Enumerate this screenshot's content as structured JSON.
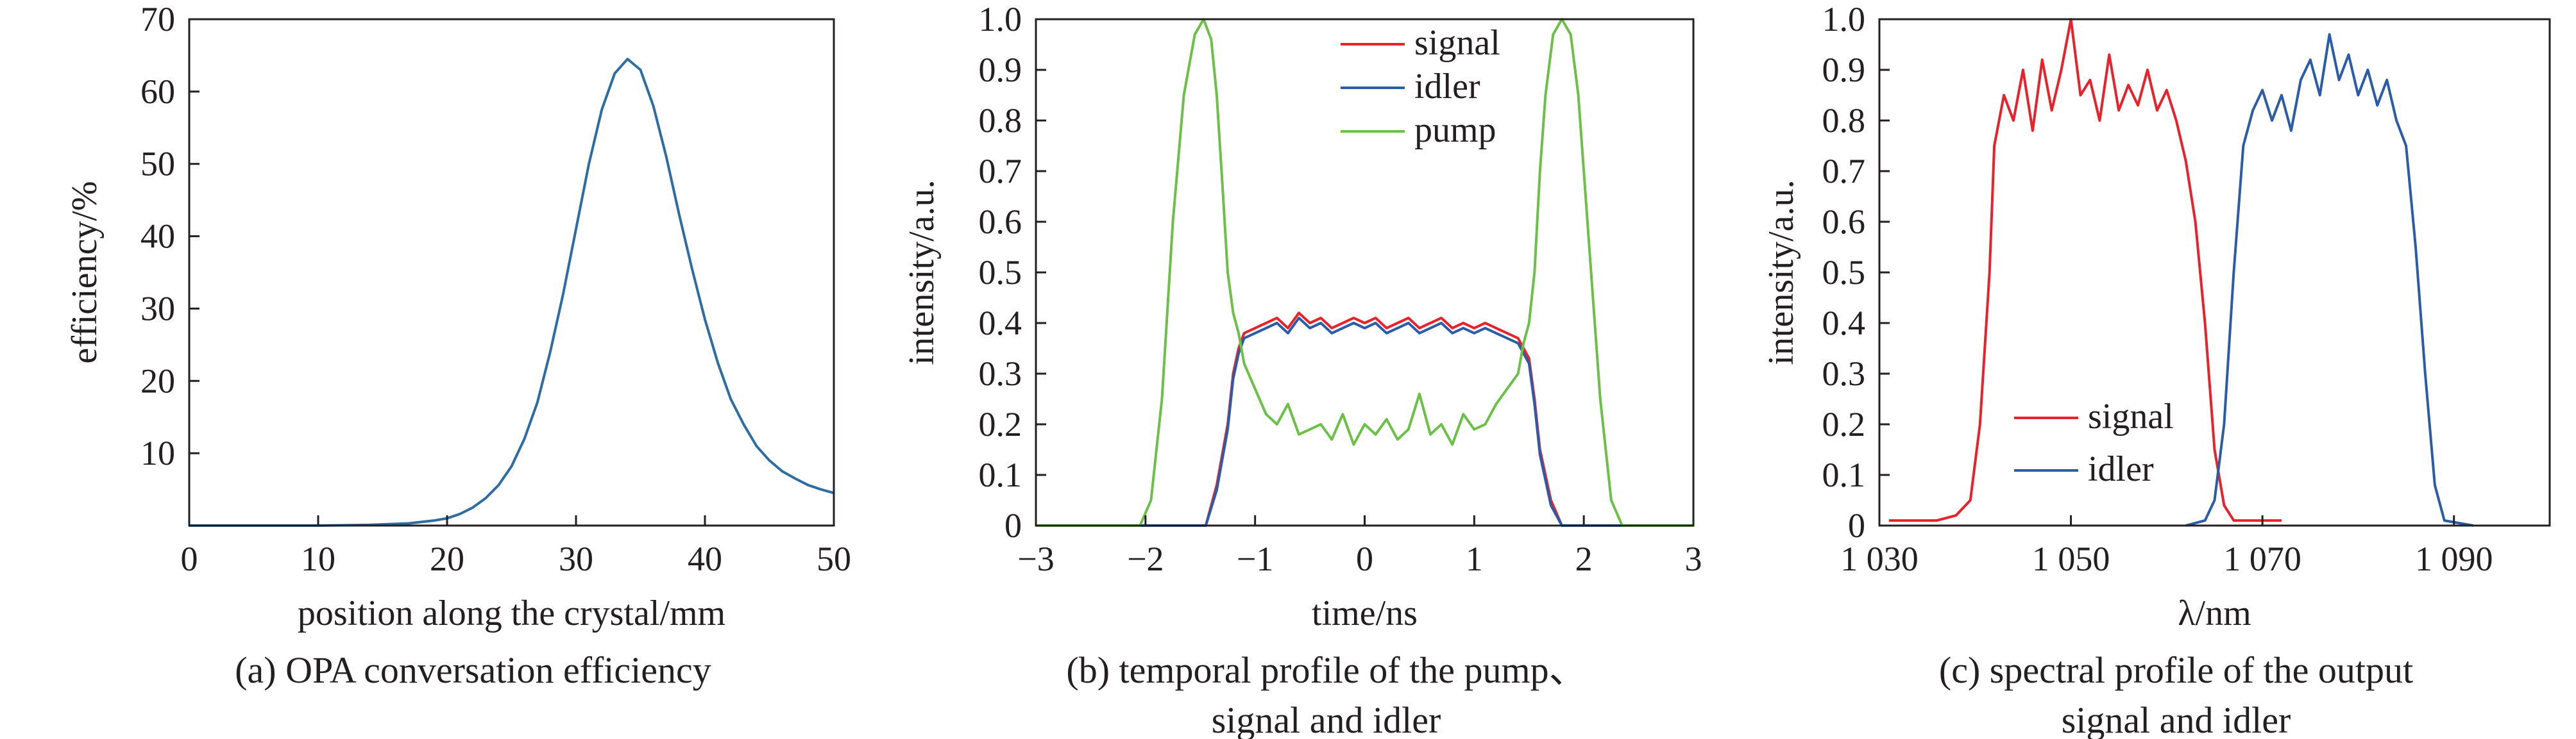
{
  "colors": {
    "blue": "#2a5ca8",
    "red": "#e8212b",
    "green": "#6cbf47",
    "axis": "#231f20",
    "curve_a": "#2e6da4"
  },
  "chart_data": [
    {
      "type": "line",
      "xlabel": "position along the crystal/mm",
      "ylabel": "efficiency/%",
      "caption": "(a) OPA conversation efficiency",
      "xlim": [
        0,
        50
      ],
      "ylim": [
        0,
        70
      ],
      "xticks": [
        0,
        10,
        20,
        30,
        40,
        50
      ],
      "xtick_labels": [
        "0",
        "10",
        "20",
        "30",
        "40",
        "50"
      ],
      "yticks": [
        10,
        20,
        30,
        40,
        50,
        60,
        70
      ],
      "ytick_labels": [
        "10",
        "20",
        "30",
        "40",
        "50",
        "60",
        "70"
      ],
      "grid": false,
      "series": [
        {
          "color": "#2e6da4",
          "x": [
            0,
            10,
            14,
            17,
            19,
            20,
            21,
            22,
            23,
            24,
            25,
            26,
            27,
            28,
            29,
            30,
            31,
            32,
            33,
            34,
            35,
            36,
            37,
            38,
            39,
            40,
            41,
            42,
            43,
            44,
            45,
            46,
            47,
            48,
            49,
            50
          ],
          "y": [
            0,
            0,
            0.1,
            0.3,
            0.7,
            1.0,
            1.6,
            2.5,
            3.8,
            5.6,
            8.2,
            12,
            17,
            24,
            32,
            41,
            50,
            57.5,
            62.5,
            64.5,
            63,
            58,
            51,
            43,
            35.5,
            28.5,
            22.5,
            17.5,
            14,
            11,
            9,
            7.5,
            6.5,
            5.6,
            5,
            4.5
          ]
        }
      ]
    },
    {
      "type": "line",
      "xlabel": "time/ns",
      "ylabel": "intensity/a.u.",
      "caption_lines": [
        "(b) temporal profile of the pump、",
        "signal and idler"
      ],
      "xlim": [
        -3,
        3
      ],
      "ylim": [
        0,
        1.0
      ],
      "xticks": [
        -3,
        -2,
        -1,
        0,
        1,
        2,
        3
      ],
      "xtick_labels": [
        "−3",
        "−2",
        "−1",
        "0",
        "1",
        "2",
        "3"
      ],
      "yticks": [
        0,
        0.1,
        0.2,
        0.3,
        0.4,
        0.5,
        0.6,
        0.7,
        0.8,
        0.9,
        1.0
      ],
      "ytick_labels": [
        "0",
        "0.1",
        "0.2",
        "0.3",
        "0.4",
        "0.5",
        "0.6",
        "0.7",
        "0.8",
        "0.9",
        "1.0"
      ],
      "legend_position": "top-right",
      "grid": false,
      "series": [
        {
          "name": "signal",
          "color": "#e8212b",
          "x": [
            -3,
            -1.45,
            -1.35,
            -1.25,
            -1.2,
            -1.15,
            -1.1,
            -1.0,
            -0.9,
            -0.8,
            -0.7,
            -0.6,
            -0.5,
            -0.4,
            -0.3,
            -0.2,
            -0.1,
            0,
            0.1,
            0.2,
            0.3,
            0.4,
            0.5,
            0.6,
            0.7,
            0.8,
            0.9,
            1.0,
            1.1,
            1.2,
            1.3,
            1.4,
            1.5,
            1.55,
            1.6,
            1.7,
            1.8,
            3
          ],
          "y": [
            0,
            0,
            0.08,
            0.2,
            0.3,
            0.35,
            0.38,
            0.39,
            0.4,
            0.41,
            0.39,
            0.42,
            0.4,
            0.41,
            0.39,
            0.4,
            0.41,
            0.4,
            0.41,
            0.39,
            0.4,
            0.41,
            0.39,
            0.4,
            0.41,
            0.39,
            0.4,
            0.39,
            0.4,
            0.39,
            0.38,
            0.37,
            0.33,
            0.25,
            0.15,
            0.05,
            0,
            0
          ]
        },
        {
          "name": "idler",
          "color": "#2a5ca8",
          "x": [
            -3,
            -1.45,
            -1.35,
            -1.25,
            -1.2,
            -1.15,
            -1.1,
            -1.0,
            -0.9,
            -0.8,
            -0.7,
            -0.6,
            -0.5,
            -0.4,
            -0.3,
            -0.2,
            -0.1,
            0,
            0.1,
            0.2,
            0.3,
            0.4,
            0.5,
            0.6,
            0.7,
            0.8,
            0.9,
            1.0,
            1.1,
            1.2,
            1.3,
            1.4,
            1.5,
            1.55,
            1.6,
            1.7,
            1.8,
            3
          ],
          "y": [
            0,
            0,
            0.07,
            0.19,
            0.29,
            0.34,
            0.37,
            0.38,
            0.39,
            0.4,
            0.38,
            0.41,
            0.39,
            0.4,
            0.38,
            0.39,
            0.4,
            0.39,
            0.4,
            0.38,
            0.39,
            0.4,
            0.38,
            0.39,
            0.4,
            0.38,
            0.39,
            0.38,
            0.39,
            0.38,
            0.37,
            0.36,
            0.32,
            0.24,
            0.14,
            0.04,
            0,
            0
          ]
        },
        {
          "name": "pump",
          "color": "#6cbf47",
          "x": [
            -3,
            -2.05,
            -1.95,
            -1.85,
            -1.75,
            -1.65,
            -1.55,
            -1.47,
            -1.4,
            -1.35,
            -1.3,
            -1.25,
            -1.2,
            -1.15,
            -1.1,
            -1.0,
            -0.9,
            -0.8,
            -0.7,
            -0.6,
            -0.5,
            -0.4,
            -0.3,
            -0.2,
            -0.1,
            0,
            0.1,
            0.2,
            0.3,
            0.4,
            0.5,
            0.6,
            0.7,
            0.8,
            0.9,
            1.0,
            1.1,
            1.2,
            1.3,
            1.4,
            1.45,
            1.5,
            1.55,
            1.6,
            1.65,
            1.72,
            1.8,
            1.88,
            1.95,
            2.05,
            2.15,
            2.25,
            2.35,
            3
          ],
          "y": [
            0,
            0,
            0.05,
            0.25,
            0.6,
            0.85,
            0.97,
            1.0,
            0.96,
            0.85,
            0.68,
            0.5,
            0.42,
            0.38,
            0.32,
            0.27,
            0.22,
            0.2,
            0.24,
            0.18,
            0.19,
            0.2,
            0.17,
            0.22,
            0.16,
            0.2,
            0.18,
            0.21,
            0.17,
            0.19,
            0.26,
            0.18,
            0.2,
            0.16,
            0.22,
            0.19,
            0.2,
            0.24,
            0.27,
            0.3,
            0.36,
            0.4,
            0.5,
            0.7,
            0.85,
            0.97,
            1.0,
            0.97,
            0.85,
            0.55,
            0.25,
            0.05,
            0,
            0
          ]
        }
      ]
    },
    {
      "type": "line",
      "xlabel": "λ/nm",
      "ylabel": "intensity/a.u.",
      "caption_lines": [
        "(c) spectral profile of the output",
        "signal and idler"
      ],
      "xlim": [
        1030,
        1100
      ],
      "ylim": [
        0,
        1.0
      ],
      "xticks": [
        1030,
        1050,
        1070,
        1090
      ],
      "xtick_labels": [
        "1 030",
        "1 050",
        "1 070",
        "1 090"
      ],
      "yticks": [
        0,
        0.1,
        0.2,
        0.3,
        0.4,
        0.5,
        0.6,
        0.7,
        0.8,
        0.9,
        1.0
      ],
      "ytick_labels": [
        "0",
        "0.1",
        "0.2",
        "0.3",
        "0.4",
        "0.5",
        "0.6",
        "0.7",
        "0.8",
        "0.9",
        "1.0"
      ],
      "legend_position": "bottom-left",
      "grid": false,
      "series": [
        {
          "name": "signal",
          "color": "#e8212b",
          "x": [
            1031,
            1036,
            1038,
            1039.5,
            1040.5,
            1041.5,
            1042,
            1043,
            1044,
            1045,
            1046,
            1047,
            1048,
            1049,
            1050,
            1051,
            1052,
            1053,
            1054,
            1055,
            1056,
            1057,
            1058,
            1059,
            1060,
            1061,
            1062,
            1063,
            1064,
            1065,
            1066,
            1067,
            1068,
            1072
          ],
          "y": [
            0.01,
            0.01,
            0.02,
            0.05,
            0.2,
            0.5,
            0.75,
            0.85,
            0.8,
            0.9,
            0.78,
            0.92,
            0.82,
            0.9,
            1.0,
            0.85,
            0.88,
            0.8,
            0.93,
            0.82,
            0.87,
            0.83,
            0.9,
            0.82,
            0.86,
            0.8,
            0.72,
            0.6,
            0.4,
            0.15,
            0.04,
            0.01,
            0.01,
            0.01
          ]
        },
        {
          "name": "idler",
          "color": "#2a5ca8",
          "x": [
            1062,
            1064,
            1065,
            1066,
            1067,
            1068,
            1069,
            1070,
            1071,
            1072,
            1073,
            1074,
            1075,
            1076,
            1077,
            1078,
            1079,
            1080,
            1081,
            1082,
            1083,
            1084,
            1085,
            1086,
            1087,
            1088,
            1089,
            1092
          ],
          "y": [
            0,
            0.01,
            0.05,
            0.2,
            0.5,
            0.75,
            0.82,
            0.86,
            0.8,
            0.85,
            0.78,
            0.88,
            0.92,
            0.85,
            0.97,
            0.88,
            0.93,
            0.85,
            0.9,
            0.83,
            0.88,
            0.8,
            0.75,
            0.55,
            0.3,
            0.08,
            0.01,
            0
          ]
        }
      ]
    }
  ]
}
